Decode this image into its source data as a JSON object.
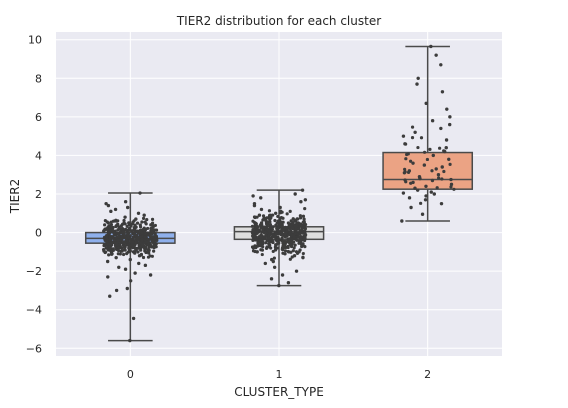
{
  "chart_data": {
    "type": "box",
    "title": "TIER2 distribution for each cluster",
    "xlabel": "CLUSTER_TYPE",
    "ylabel": "TIER2",
    "categories": [
      "0",
      "1",
      "2"
    ],
    "ylim": [
      -6.4,
      10.4
    ],
    "yticks": [
      -6,
      -4,
      -2,
      0,
      2,
      4,
      6,
      8,
      10
    ],
    "grid": true,
    "overlay": "strip (jittered points)",
    "boxes": [
      {
        "category": "0",
        "whisker_low": -5.6,
        "q1": -0.55,
        "median": -0.3,
        "q3": 0.0,
        "whisker_high": 2.05,
        "color": "#8fb0ec"
      },
      {
        "category": "1",
        "whisker_low": -2.75,
        "q1": -0.35,
        "median": 0.05,
        "q3": 0.3,
        "whisker_high": 2.2,
        "color": "#dddddd"
      },
      {
        "category": "2",
        "whisker_low": 0.6,
        "q1": 2.25,
        "median": 2.75,
        "q3": 4.15,
        "whisker_high": 9.65,
        "color": "#eba384"
      }
    ],
    "points": {
      "0": [
        -5.6,
        -4.45,
        -3.3,
        -3.0,
        -2.9,
        -2.5,
        -2.3,
        -2.2,
        -2.1,
        -1.9,
        -1.8,
        -1.7,
        -1.6,
        -1.5,
        -1.4,
        -1.3,
        -1.2,
        -1.1,
        -1.0,
        -0.9,
        -0.85,
        -0.8,
        -0.75,
        -0.7,
        -0.65,
        -0.6,
        -0.55,
        -0.5,
        -0.45,
        -0.4,
        -0.35,
        -0.3,
        -0.25,
        -0.2,
        -0.15,
        -0.1,
        -0.05,
        0.0,
        0.05,
        0.1,
        0.15,
        0.2,
        0.25,
        0.3,
        0.35,
        0.4,
        0.5,
        0.6,
        0.7,
        0.8,
        0.9,
        1.0,
        1.1,
        1.2,
        1.3,
        1.4,
        1.5,
        1.6,
        2.05
      ],
      "1": [
        -2.75,
        -2.6,
        -2.4,
        -2.2,
        -2.0,
        -1.8,
        -1.6,
        -1.5,
        -1.4,
        -1.3,
        -1.2,
        -1.1,
        -1.0,
        -0.9,
        -0.8,
        -0.7,
        -0.6,
        -0.5,
        -0.45,
        -0.4,
        -0.35,
        -0.3,
        -0.25,
        -0.2,
        -0.15,
        -0.1,
        -0.05,
        0.0,
        0.05,
        0.1,
        0.15,
        0.2,
        0.25,
        0.3,
        0.35,
        0.4,
        0.5,
        0.6,
        0.7,
        0.8,
        0.9,
        1.0,
        1.1,
        1.2,
        1.3,
        1.4,
        1.5,
        1.6,
        1.7,
        1.8,
        1.9,
        2.0,
        2.2
      ],
      "2": [
        0.6,
        0.95,
        1.3,
        1.5,
        1.7,
        1.8,
        1.9,
        2.0,
        2.05,
        2.1,
        2.2,
        2.3,
        2.4,
        2.5,
        2.6,
        2.7,
        2.75,
        2.8,
        2.9,
        3.0,
        3.1,
        3.2,
        3.3,
        3.4,
        3.5,
        3.6,
        3.8,
        4.0,
        4.2,
        4.4,
        4.6,
        4.8,
        5.0,
        5.2,
        5.4,
        5.6,
        5.8,
        6.0,
        6.4,
        6.7,
        7.3,
        7.7,
        8.0,
        8.7,
        9.2,
        9.65
      ]
    }
  }
}
